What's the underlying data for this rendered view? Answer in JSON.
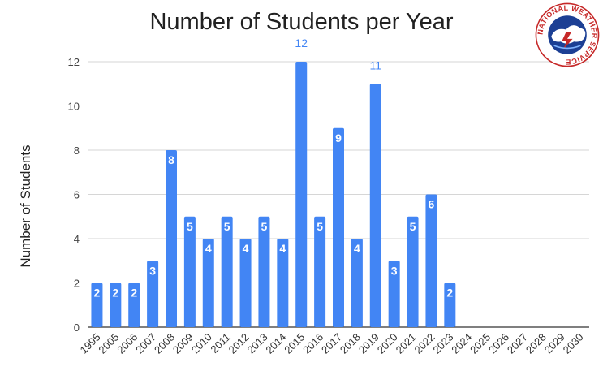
{
  "chart_data": {
    "type": "bar",
    "title": "Number of Students per Year",
    "ylabel": "Number of Students",
    "xlabel": "",
    "categories": [
      "1995",
      "2005",
      "2006",
      "2007",
      "2008",
      "2009",
      "2010",
      "2011",
      "2012",
      "2013",
      "2014",
      "2015",
      "2016",
      "2017",
      "2018",
      "2019",
      "2020",
      "2021",
      "2022",
      "2023",
      "2024",
      "2025",
      "2026",
      "2027",
      "2028",
      "2029",
      "2030"
    ],
    "values": [
      2,
      2,
      2,
      3,
      8,
      5,
      4,
      5,
      4,
      5,
      4,
      12,
      5,
      9,
      4,
      11,
      3,
      5,
      6,
      2,
      null,
      null,
      null,
      null,
      null,
      null,
      null
    ],
    "ylim": [
      0,
      12
    ],
    "yticks": [
      0,
      2,
      4,
      6,
      8,
      10,
      12
    ],
    "grid": true,
    "legend": "none",
    "bar_color": "#4285f4",
    "inside_label_color": "#ffffff",
    "outside_label_color": "#4285f4"
  },
  "logo": {
    "name": "National Weather Service seal",
    "text": "NATIONAL WEATHER SERVICE"
  }
}
